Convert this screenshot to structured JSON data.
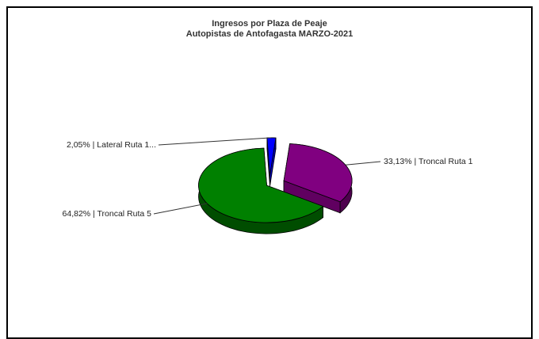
{
  "chart_data": {
    "type": "pie",
    "title": "Ingresos por Plaza de Peaje",
    "subtitle": "Autopistas de Antofagasta MARZO-2021",
    "slices": [
      {
        "label": "Troncal Ruta 1",
        "value": 33.13,
        "display": "33,13% | Troncal Ruta 1",
        "color": "#800080"
      },
      {
        "label": "Troncal Ruta 5",
        "value": 64.82,
        "display": "64,82% | Troncal Ruta 5",
        "color": "#008000"
      },
      {
        "label": "Lateral Ruta 1...",
        "value": 2.05,
        "display": "2,05% | Lateral Ruta 1...",
        "color": "#0000FF"
      }
    ],
    "legend": "none",
    "style": "3d-exploded"
  }
}
